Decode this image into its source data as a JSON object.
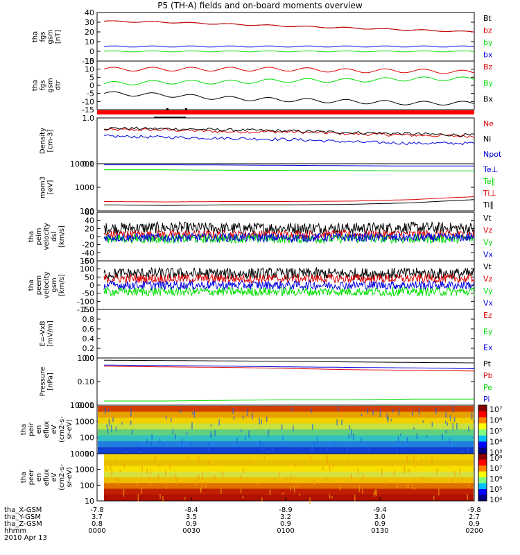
{
  "title": "P5 (TH-A) fields and on-board moments overview",
  "colors": {
    "black": "#000000",
    "red": "#dd0000",
    "green": "#00dd00",
    "blue": "#0000dd",
    "bar": "#ff0000"
  },
  "chart_data": [
    {
      "type": "line",
      "id": "bfield",
      "ylabel": [
        "tha",
        "fgs",
        "gsm",
        "[nT]"
      ],
      "yticks": [
        "40",
        "30",
        "20",
        "10",
        "0",
        "-10"
      ],
      "ylim": [
        -10,
        40
      ],
      "series": [
        {
          "name": "Bt",
          "color": "black",
          "values": [
            31,
            30,
            28,
            26,
            24,
            22,
            20
          ]
        },
        {
          "name": "bz",
          "color": "red",
          "values": [
            31,
            30,
            28,
            26,
            24,
            22,
            20
          ]
        },
        {
          "name": "by",
          "color": "green",
          "values": [
            0,
            0,
            0,
            0,
            0,
            0,
            0
          ]
        },
        {
          "name": "bx",
          "color": "blue",
          "values": [
            5,
            5,
            5,
            5,
            5,
            5,
            5
          ]
        }
      ],
      "legend": [
        "Bt",
        "bz",
        "by",
        "bx"
      ]
    },
    {
      "type": "line",
      "id": "bcomp",
      "ylabel": [
        "tha",
        "fgs",
        "gsm",
        "dtr"
      ],
      "yticks": [
        "15",
        "10",
        "5",
        "0",
        "-5",
        "-10",
        "-15"
      ],
      "ylim": [
        -15,
        15
      ],
      "series": [
        {
          "name": "Bz",
          "color": "red",
          "values": [
            10,
            10,
            10,
            10,
            9,
            9,
            8
          ]
        },
        {
          "name": "By",
          "color": "green",
          "values": [
            1,
            2,
            2,
            3,
            3,
            4,
            4
          ]
        },
        {
          "name": "Bx",
          "color": "black",
          "values": [
            -5,
            -6,
            -8,
            -9,
            -10,
            -11,
            -11
          ]
        }
      ],
      "legend": [
        "Bz",
        "By",
        "Bx"
      ]
    },
    {
      "type": "line",
      "id": "density",
      "ylabel": [
        "Density",
        "[cm-3]"
      ],
      "yticks": [
        "1.0",
        "0.1"
      ],
      "ylim": [
        0.1,
        1.0
      ],
      "log": true,
      "series": [
        {
          "name": "Ne",
          "color": "red",
          "values": [
            0.55,
            0.55,
            0.5,
            0.5,
            0.45,
            0.42,
            0.4
          ]
        },
        {
          "name": "Ni",
          "color": "black",
          "values": [
            0.6,
            0.58,
            0.55,
            0.52,
            0.48,
            0.45,
            0.42
          ]
        },
        {
          "name": "Npot",
          "color": "blue",
          "values": [
            0.4,
            0.38,
            0.36,
            0.34,
            0.3,
            0.28,
            0.28
          ]
        }
      ],
      "legend": [
        "Ne",
        "Ni",
        "Npot"
      ]
    },
    {
      "type": "line",
      "id": "temp",
      "ylabel": [
        "mom3",
        "[eV]"
      ],
      "yticks": [
        "10000",
        "1000",
        "100"
      ],
      "ylim": [
        100,
        10000
      ],
      "log": true,
      "series": [
        {
          "name": "Te⊥",
          "color": "blue",
          "values": [
            9000,
            9000,
            8800,
            8500,
            8200,
            8000,
            8000
          ]
        },
        {
          "name": "Te∥",
          "color": "green",
          "values": [
            5500,
            5500,
            5300,
            5200,
            5100,
            5000,
            5000
          ]
        },
        {
          "name": "Ti⊥",
          "color": "red",
          "values": [
            250,
            240,
            250,
            250,
            260,
            300,
            400
          ]
        },
        {
          "name": "Ti∥",
          "color": "black",
          "values": [
            180,
            170,
            180,
            180,
            190,
            220,
            300
          ]
        }
      ],
      "legend": [
        "Te⊥",
        "Te∥",
        "Ti⊥",
        "Ti∥"
      ]
    },
    {
      "type": "line",
      "id": "vel1",
      "ylabel": [
        "tha",
        "peim",
        "velocity",
        "dsl",
        "[km/s]"
      ],
      "yticks": [
        "60",
        "40",
        "20",
        "0",
        "-20",
        "-40",
        "-60"
      ],
      "ylim": [
        -60,
        60
      ],
      "series": [
        {
          "name": "Vt",
          "color": "black",
          "values": [
            20,
            22,
            20,
            21,
            20,
            22,
            20
          ]
        },
        {
          "name": "Vz",
          "color": "red",
          "values": [
            5,
            5,
            5,
            5,
            5,
            5,
            5
          ]
        },
        {
          "name": "Vy",
          "color": "green",
          "values": [
            -5,
            -6,
            -5,
            -6,
            -5,
            -6,
            -5
          ]
        },
        {
          "name": "Vx",
          "color": "blue",
          "values": [
            -2,
            -3,
            -2,
            -3,
            -2,
            -3,
            -2
          ]
        }
      ],
      "legend": [
        "Vt",
        "Vz",
        "Vy",
        "Vx"
      ]
    },
    {
      "type": "line",
      "id": "vel2",
      "ylabel": [
        "tha",
        "peem",
        "velocity",
        "gsm",
        "[km/s]"
      ],
      "yticks": [
        "150",
        "100",
        "50",
        "0",
        "-50",
        "-100",
        "-150"
      ],
      "ylim": [
        -150,
        150
      ],
      "series": [
        {
          "name": "Vt",
          "color": "black",
          "values": [
            70,
            72,
            70,
            71,
            70,
            72,
            70
          ]
        },
        {
          "name": "Vz",
          "color": "red",
          "values": [
            40,
            40,
            40,
            40,
            40,
            40,
            40
          ]
        },
        {
          "name": "Vy",
          "color": "green",
          "values": [
            -40,
            -40,
            -40,
            -40,
            -40,
            -40,
            -40
          ]
        },
        {
          "name": "Vx",
          "color": "blue",
          "values": [
            0,
            0,
            0,
            0,
            0,
            0,
            0
          ]
        }
      ],
      "legend": [
        "Vt",
        "Vz",
        "Vy",
        "Vx"
      ]
    },
    {
      "type": "line",
      "id": "efield",
      "ylabel": [
        "E=-VxB",
        "[mV/m]"
      ],
      "yticks": [
        "1.0",
        "0.8",
        "0.6",
        "0.4",
        "0.2",
        "0.0"
      ],
      "ylim": [
        0,
        1
      ],
      "series": [],
      "legend": [
        "Ez",
        "Ey",
        "Ex"
      ]
    },
    {
      "type": "line",
      "id": "pressure",
      "ylabel": [
        "Pressure",
        "[nPa]"
      ],
      "yticks": [
        "1.00",
        "0.10",
        "0.01"
      ],
      "ylim": [
        0.01,
        1
      ],
      "log": true,
      "series": [
        {
          "name": "Pt",
          "color": "black",
          "values": [
            0.8,
            0.78,
            0.75,
            0.72,
            0.68,
            0.65,
            0.62
          ]
        },
        {
          "name": "Pb",
          "color": "red",
          "values": [
            0.45,
            0.42,
            0.4,
            0.36,
            0.32,
            0.3,
            0.28
          ]
        },
        {
          "name": "Pe",
          "color": "green",
          "values": [
            0.015,
            0.015,
            0.016,
            0.017,
            0.017,
            0.018,
            0.018
          ]
        },
        {
          "name": "Pi",
          "color": "blue",
          "values": [
            0.5,
            0.48,
            0.45,
            0.42,
            0.4,
            0.38,
            0.35
          ]
        }
      ],
      "legend": [
        "Pt",
        "Pb",
        "Pe",
        "Pi"
      ]
    },
    {
      "type": "heatmap",
      "id": "ion_spec",
      "ylabel": [
        "tha",
        "peir",
        "en",
        "eflux",
        "eV",
        "(cm2-s-",
        "sr-eV)"
      ],
      "yticks": [
        "10000",
        "1000",
        "100",
        "10"
      ],
      "ylim": [
        10,
        10000
      ],
      "log": true,
      "colorbar_ticks": [
        "10⁷",
        "10⁶",
        "10⁵",
        "10⁴",
        "10³"
      ]
    },
    {
      "type": "heatmap",
      "id": "ele_spec",
      "ylabel": [
        "tha",
        "peer",
        "en",
        "eflux",
        "eV",
        "(cm2-s-",
        "sr-eV)"
      ],
      "yticks": [
        "10000",
        "1000",
        "100",
        "10"
      ],
      "ylim": [
        10,
        10000
      ],
      "log": true,
      "colorbar_ticks": [
        "10⁸",
        "10⁷",
        "10⁶",
        "10⁵",
        "10⁴"
      ]
    }
  ],
  "x_axis": {
    "rows": [
      {
        "label": "tha_X-GSM",
        "values": [
          "-7.8",
          "-8.4",
          "-8.9",
          "-9.4",
          "-9.8"
        ]
      },
      {
        "label": "tha_Y-GSM",
        "values": [
          "3.7",
          "3.5",
          "3.2",
          "3.0",
          "2.7"
        ]
      },
      {
        "label": "tha_Z-GSM",
        "values": [
          "0.8",
          "0.9",
          "0.9",
          "0.9",
          "0.9"
        ]
      },
      {
        "label": "hhmm",
        "values": [
          "0000",
          "0030",
          "0100",
          "0130",
          "0200"
        ]
      }
    ],
    "date": "2010 Apr 13"
  }
}
